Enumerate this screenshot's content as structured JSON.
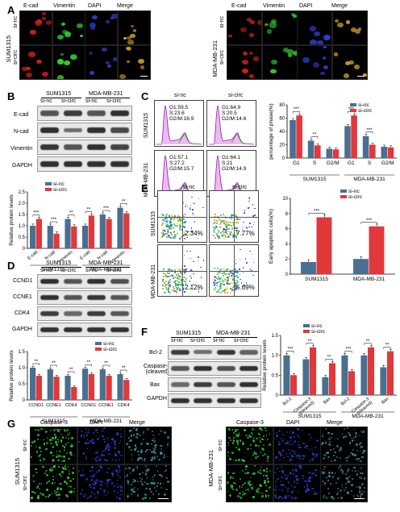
{
  "panels": {
    "A": {
      "letter": "A",
      "left": {
        "cell_line": "SUM1315",
        "rows": [
          "si-nc",
          "si-circ"
        ]
      },
      "right": {
        "cell_line": "MDA-MB-231",
        "rows": [
          "si-nc",
          "si-circ"
        ]
      },
      "columns": [
        "E-cad",
        "Vimentin",
        "DAPI",
        "Merge"
      ]
    },
    "B": {
      "letter": "B",
      "header": {
        "groups": [
          "SUM1315",
          "MDA-MB-231"
        ],
        "lanes": [
          "si-nc",
          "si-circ",
          "si-nc",
          "si-circ"
        ]
      },
      "blots": [
        "E-cad",
        "N-cad",
        "Vimentin",
        "GAPDH"
      ]
    },
    "C": {
      "letter": "C",
      "cols": [
        "si-nc",
        "si-circ"
      ],
      "rows": [
        "SUM1315",
        "MDA-MB-231"
      ],
      "readouts": [
        [
          "G1:59.5",
          "S:23.6",
          "G2/M:16.9"
        ],
        [
          "G1:64.9",
          "S:20.5",
          "G2/M:14.6"
        ],
        [
          "G1:57.1",
          "S:27.2",
          "G2/M:15.7"
        ],
        [
          "G1:64.1",
          "S:21",
          "G2/M:14.9"
        ]
      ]
    },
    "D": {
      "letter": "D",
      "header": {
        "groups": [
          "SUM1315",
          "MDA-MB-231"
        ],
        "lanes": [
          "si-nc",
          "si-circ",
          "si-nc",
          "si-circ"
        ]
      },
      "blots": [
        "CCND1",
        "CCNE1",
        "CDK4",
        "GAPDH"
      ]
    },
    "E": {
      "letter": "E",
      "cols": [
        "si-nc",
        "si-circ"
      ],
      "rows": [
        "SUM1315",
        "MDA-MB-231"
      ],
      "percents": [
        "2.34%",
        "7.77%",
        "2.12%",
        "5.69%"
      ]
    },
    "F": {
      "letter": "F",
      "header": {
        "groups": [
          "SUM1315",
          "MDA-MB-231"
        ],
        "lanes": [
          "si-nc",
          "si-circ",
          "si-nc",
          "si-circ"
        ]
      },
      "blots": [
        "Bcl-2",
        "Caspase-3\n(cleaved)",
        "Bax",
        "GAPDH"
      ]
    },
    "G": {
      "letter": "G",
      "left": {
        "cell_line": "SUM1315",
        "rows": [
          "si-nc",
          "si-circ"
        ]
      },
      "right": {
        "cell_line": "MDA-MB-231",
        "rows": [
          "si-nc",
          "si-circ"
        ]
      },
      "columns": [
        "Caspase-3",
        "DAPI",
        "Merge"
      ]
    }
  },
  "legend": {
    "si_nc": "si-nc",
    "si_circ": "si-circ"
  },
  "colors": {
    "si_nc": "#4a6f8f",
    "si_circ": "#e0383b",
    "dapi": "#2a3ccc",
    "red_stain": "#d81e1e",
    "green_stain": "#2ed02e"
  },
  "chart_data": [
    {
      "id": "B",
      "type": "bar",
      "ylabel": "Relative protein levels",
      "ylim": [
        0,
        2.5
      ],
      "yticks": [
        "0",
        "0.5",
        "1.0",
        "1.5",
        "2.0",
        "2.5"
      ],
      "categories": [
        "E-cad",
        "N-cad",
        "Vimentin",
        "E-cad",
        "N-cad",
        "Vimentin"
      ],
      "groups": [
        "SUM1315",
        "MDA-MB-231"
      ],
      "series": [
        {
          "name": "si-nc",
          "values": [
            1.0,
            1.0,
            1.3,
            1.0,
            1.5,
            1.8
          ]
        },
        {
          "name": "si-circ",
          "values": [
            1.3,
            0.65,
            0.97,
            1.45,
            1.3,
            1.55
          ]
        }
      ],
      "significance": [
        "***",
        "***",
        "**",
        "**",
        "***",
        "**"
      ]
    },
    {
      "id": "C",
      "type": "bar",
      "ylabel": "percentage of phase(%)",
      "ylim": [
        0,
        80
      ],
      "yticks": [
        "0",
        "20",
        "40",
        "60",
        "80"
      ],
      "categories": [
        "G1",
        "S",
        "G2/M",
        "G1",
        "S",
        "G2/M"
      ],
      "groups": [
        "SUM1315",
        "MDA-MB-231"
      ],
      "series": [
        {
          "name": "si-nc",
          "values": [
            57,
            26,
            14,
            48,
            33,
            17
          ]
        },
        {
          "name": "si-circ",
          "values": [
            64,
            19,
            13,
            64,
            20,
            16
          ]
        }
      ],
      "significance": [
        "***",
        "**",
        "",
        "***",
        "***",
        ""
      ]
    },
    {
      "id": "D",
      "type": "bar",
      "ylabel": "Relative protein levels",
      "ylim": [
        0,
        1.5
      ],
      "yticks": [
        "0",
        "0.5",
        "1.0",
        "1.5"
      ],
      "categories": [
        "CCND1",
        "CCNE1",
        "CDK4",
        "CCND1",
        "CCNE1",
        "CDK4"
      ],
      "groups": [
        "SUM1315",
        "MDA-MB-231"
      ],
      "series": [
        {
          "name": "si-nc",
          "values": [
            1.0,
            0.95,
            0.75,
            0.97,
            0.95,
            0.8
          ]
        },
        {
          "name": "si-circ",
          "values": [
            0.75,
            0.72,
            0.4,
            0.8,
            0.75,
            0.62
          ]
        }
      ],
      "significance": [
        "**",
        "**",
        "**",
        "**",
        "**",
        "**"
      ]
    },
    {
      "id": "E",
      "type": "bar",
      "ylabel": "Early apoptotic cells(%)",
      "ylim": [
        0,
        10
      ],
      "yticks": [
        "0",
        "2",
        "4",
        "6",
        "8",
        "10"
      ],
      "categories": [
        "SUM1315",
        "MDA-MB-231"
      ],
      "series": [
        {
          "name": "si-nc",
          "values": [
            1.6,
            2.0
          ]
        },
        {
          "name": "si-circ",
          "values": [
            7.5,
            6.3
          ]
        }
      ],
      "significance": [
        "***",
        "***"
      ]
    },
    {
      "id": "F",
      "type": "bar",
      "ylabel": "Relative protein levels",
      "ylim": [
        0,
        1.5
      ],
      "yticks": [
        "0",
        "0.5",
        "1.0",
        "1.5"
      ],
      "categories": [
        "Bcl-2",
        "Caspase-3\n(cleaved)",
        "Bax",
        "Bcl-2",
        "Caspase-3\n(cleaved)",
        "Bax"
      ],
      "groups": [
        "SUM1315",
        "MDA-MB-231"
      ],
      "series": [
        {
          "name": "si-nc",
          "values": [
            1.0,
            0.9,
            0.45,
            1.0,
            1.0,
            0.7
          ]
        },
        {
          "name": "si-circ",
          "values": [
            0.5,
            1.2,
            0.8,
            0.6,
            1.2,
            1.1
          ]
        }
      ],
      "significance": [
        "***",
        "**",
        "**",
        "***",
        "**",
        "**"
      ]
    }
  ]
}
